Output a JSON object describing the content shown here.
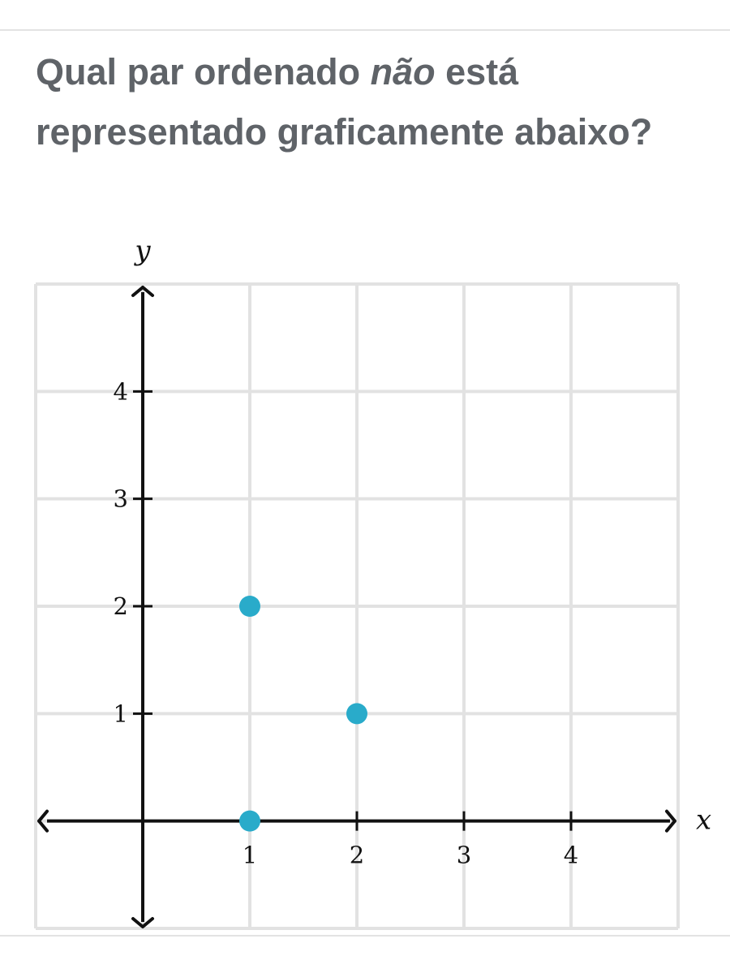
{
  "question": {
    "before": "Qual par ordenado ",
    "emphasis": "não",
    "after": " está representado graficamente abaixo?"
  },
  "chart_data": {
    "type": "scatter",
    "title": "",
    "xlabel": "x",
    "ylabel": "y",
    "xlim": [
      -1,
      5
    ],
    "ylim": [
      -1,
      5
    ],
    "x_ticks": [
      1,
      2,
      3,
      4
    ],
    "y_ticks": [
      1,
      2,
      3,
      4
    ],
    "grid": true,
    "point_color": "#29abca",
    "series": [
      {
        "points": [
          [
            1,
            2
          ],
          [
            2,
            1
          ],
          [
            1,
            0
          ]
        ]
      }
    ]
  }
}
